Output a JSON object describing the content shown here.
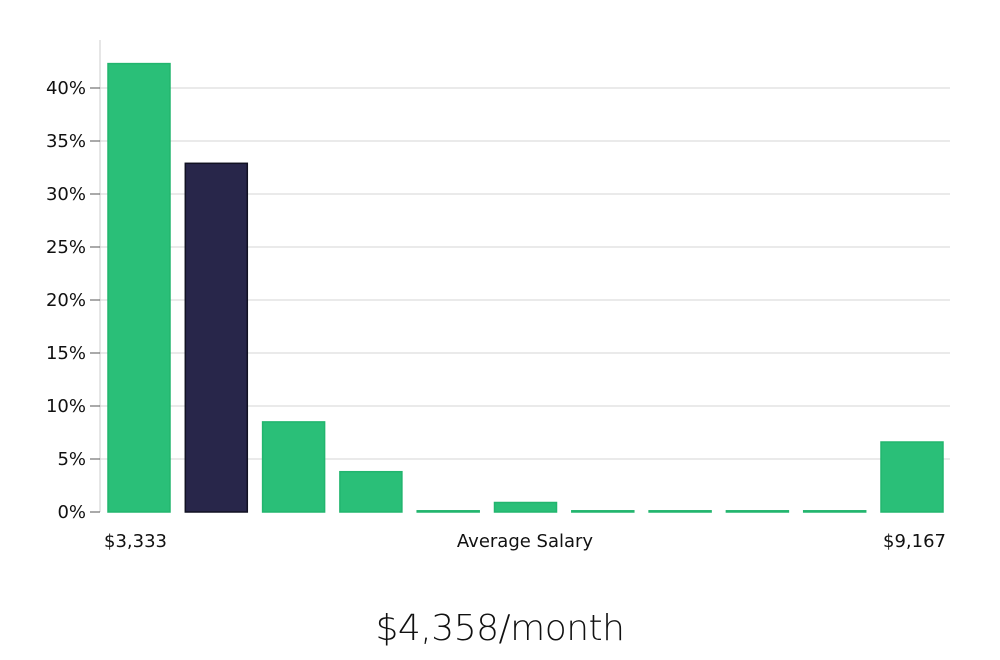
{
  "chart_data": {
    "type": "bar",
    "title": "",
    "xlabel": "Average Salary",
    "ylabel": "",
    "x_range_labels": {
      "min": "$3,333",
      "max": "$9,167"
    },
    "ylim": [
      0,
      44
    ],
    "yticks": [
      0,
      5,
      10,
      15,
      20,
      25,
      30,
      35,
      40
    ],
    "ytick_suffix": "%",
    "grid": true,
    "values": [
      42.3,
      32.9,
      8.5,
      3.8,
      0.1,
      0.9,
      0.1,
      0.1,
      0.1,
      0.1,
      6.6
    ],
    "highlight_index": 1,
    "colors": {
      "bar": "#2abf78",
      "highlight": "#28264a",
      "highlight_border": "#111122",
      "grid": "#e4e4e4",
      "axis": "#cccccc"
    }
  },
  "summary": "$4,358/month"
}
